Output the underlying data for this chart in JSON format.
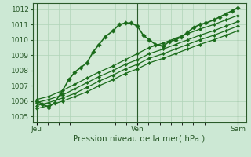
{
  "background_color": "#cce8d4",
  "plot_bg_color": "#d4ead8",
  "grid_color": "#b0d4b8",
  "line_color": "#1a6b1a",
  "marker_color": "#1a6b1a",
  "xlabel": "Pression niveau de la mer( hPa )",
  "xtick_labels": [
    "Jeu",
    "Ven",
    "Sam"
  ],
  "xtick_positions": [
    0.0,
    0.5,
    1.0
  ],
  "ylim": [
    1004.6,
    1012.4
  ],
  "yticks": [
    1005,
    1006,
    1007,
    1008,
    1009,
    1010,
    1011,
    1012
  ],
  "xlim": [
    -0.02,
    1.04
  ],
  "lines": [
    {
      "x": [
        0.0,
        0.03,
        0.06,
        0.09,
        0.12,
        0.16,
        0.19,
        0.22,
        0.25,
        0.28,
        0.31,
        0.34,
        0.38,
        0.41,
        0.44,
        0.47,
        0.5,
        0.53,
        0.56,
        0.59,
        0.63,
        0.66,
        0.69,
        0.72,
        0.75,
        0.78,
        0.81,
        0.84,
        0.88,
        0.91,
        0.94,
        0.97,
        1.0
      ],
      "y": [
        1006.0,
        1005.8,
        1005.6,
        1005.9,
        1006.5,
        1007.4,
        1007.9,
        1008.2,
        1008.5,
        1009.2,
        1009.7,
        1010.2,
        1010.6,
        1011.0,
        1011.1,
        1011.1,
        1010.9,
        1010.3,
        1010.0,
        1009.7,
        1009.6,
        1009.9,
        1010.0,
        1010.2,
        1010.5,
        1010.8,
        1011.0,
        1011.1,
        1011.3,
        1011.5,
        1011.7,
        1011.9,
        1012.1
      ],
      "marker": "D",
      "markersize": 2.8,
      "linewidth": 1.2,
      "zorder": 5
    },
    {
      "x": [
        0.0,
        0.06,
        0.13,
        0.19,
        0.25,
        0.31,
        0.38,
        0.44,
        0.5,
        0.56,
        0.63,
        0.69,
        0.75,
        0.81,
        0.88,
        0.94,
        1.0
      ],
      "y": [
        1006.1,
        1006.3,
        1006.7,
        1007.1,
        1007.5,
        1007.9,
        1008.3,
        1008.7,
        1009.1,
        1009.5,
        1009.8,
        1010.1,
        1010.4,
        1010.7,
        1011.0,
        1011.3,
        1011.6
      ],
      "marker": "D",
      "markersize": 2.2,
      "linewidth": 0.9,
      "zorder": 4
    },
    {
      "x": [
        0.0,
        0.06,
        0.13,
        0.19,
        0.25,
        0.31,
        0.38,
        0.44,
        0.5,
        0.56,
        0.63,
        0.69,
        0.75,
        0.81,
        0.88,
        0.94,
        1.0
      ],
      "y": [
        1005.9,
        1006.1,
        1006.4,
        1006.8,
        1007.2,
        1007.6,
        1008.0,
        1008.4,
        1008.7,
        1009.1,
        1009.4,
        1009.7,
        1010.0,
        1010.3,
        1010.6,
        1010.9,
        1011.2
      ],
      "marker": "D",
      "markersize": 2.2,
      "linewidth": 0.9,
      "zorder": 4
    },
    {
      "x": [
        0.0,
        0.06,
        0.13,
        0.19,
        0.25,
        0.31,
        0.38,
        0.44,
        0.5,
        0.56,
        0.63,
        0.69,
        0.75,
        0.81,
        0.88,
        0.94,
        1.0
      ],
      "y": [
        1005.7,
        1005.9,
        1006.2,
        1006.5,
        1006.9,
        1007.3,
        1007.7,
        1008.1,
        1008.4,
        1008.8,
        1009.1,
        1009.4,
        1009.7,
        1010.0,
        1010.3,
        1010.6,
        1010.9
      ],
      "marker": "D",
      "markersize": 2.2,
      "linewidth": 0.9,
      "zorder": 4
    },
    {
      "x": [
        0.0,
        0.06,
        0.13,
        0.19,
        0.25,
        0.31,
        0.38,
        0.44,
        0.5,
        0.56,
        0.63,
        0.69,
        0.75,
        0.81,
        0.88,
        0.94,
        1.0
      ],
      "y": [
        1005.5,
        1005.7,
        1006.0,
        1006.3,
        1006.6,
        1007.0,
        1007.4,
        1007.8,
        1008.1,
        1008.5,
        1008.8,
        1009.1,
        1009.4,
        1009.7,
        1010.0,
        1010.3,
        1010.6
      ],
      "marker": "D",
      "markersize": 2.2,
      "linewidth": 0.9,
      "zorder": 4
    }
  ],
  "vlines": [
    0.0,
    0.5,
    1.0
  ],
  "xlabel_fontsize": 7.5,
  "tick_fontsize": 6.5,
  "tick_color": "#2a5a2a",
  "axis_color": "#2a5a2a",
  "minor_xtick_count": 18
}
